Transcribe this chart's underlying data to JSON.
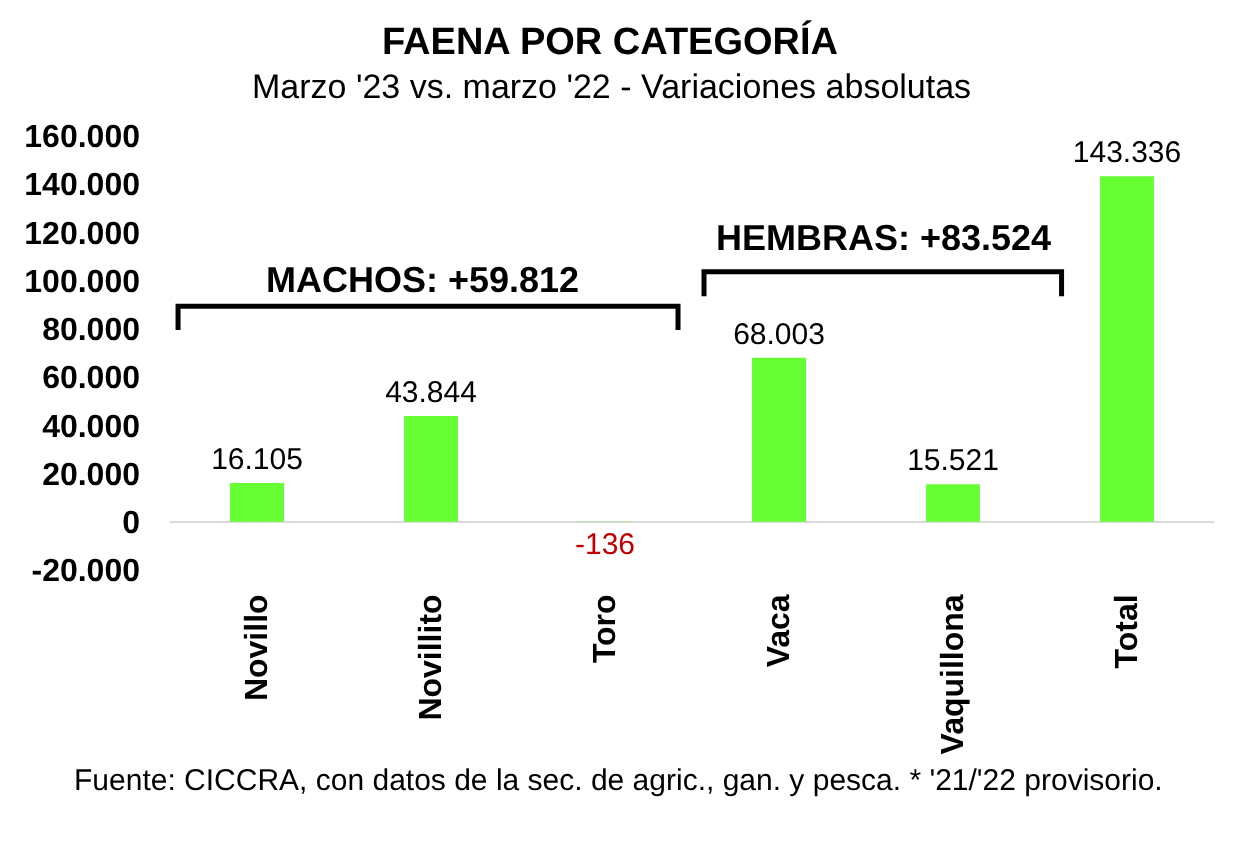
{
  "chart_data": {
    "type": "bar",
    "title": "FAENA POR CATEGORÍA",
    "subtitle": "Marzo '23 vs. marzo '22 - Variaciones absolutas",
    "categories": [
      "Novillo",
      "Novillito",
      "Toro",
      "Vaca",
      "Vaquillona",
      "Total"
    ],
    "values": [
      16105,
      43844,
      -136,
      68003,
      15521,
      143336
    ],
    "value_labels": [
      "16.105",
      "43.844",
      "-136",
      "68.003",
      "15.521",
      "143.336"
    ],
    "color": "#66ff33",
    "ylim": [
      -20000,
      160000
    ],
    "yticks": [
      {
        "value": -20000,
        "label": "-20.000"
      },
      0,
      {
        "value": 20000,
        "label": "20.000"
      },
      {
        "value": 40000,
        "label": "40.000"
      },
      {
        "value": 60000,
        "label": "60.000"
      },
      {
        "value": 80000,
        "label": "80.000"
      },
      {
        "value": 100000,
        "label": "100.000"
      },
      {
        "value": 120000,
        "label": "120.000"
      },
      {
        "value": 140000,
        "label": "140.000"
      },
      {
        "value": 160000,
        "label": "160.000"
      }
    ],
    "annotations": [
      "MACHOS: +59.812",
      "HEMBRAS: +83.524",
      "Fuente: CICCRA, con datos de la sec. de agric., gan. y pesca. * '21/'22 provisorio."
    ]
  }
}
